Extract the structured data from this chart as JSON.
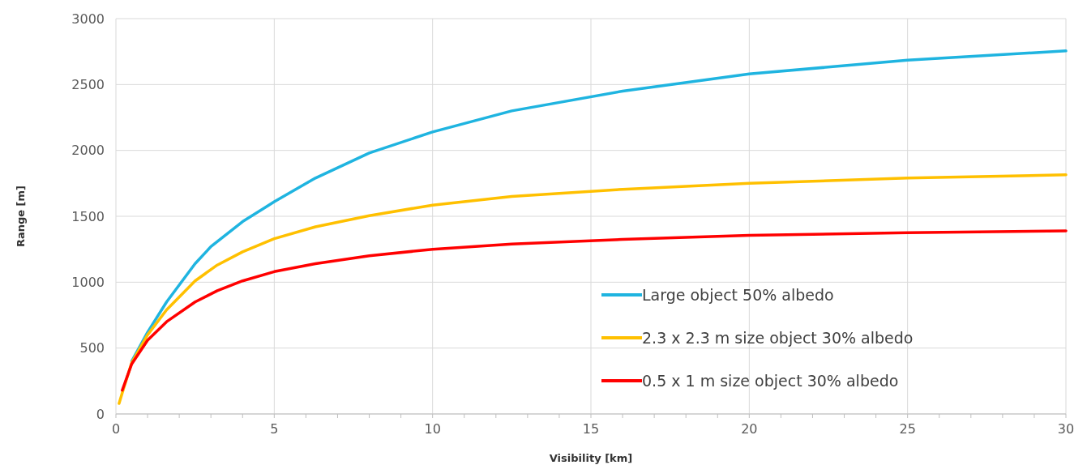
{
  "chart_data": {
    "type": "line",
    "xlabel": "Visibility [km]",
    "ylabel": "Range [m]",
    "xlim": [
      0,
      30
    ],
    "ylim": [
      0,
      3000
    ],
    "xticks": [
      0,
      {
        "value": 1,
        "label": null
      },
      {
        "value": 2,
        "label": null
      },
      {
        "value": 3,
        "label": null
      },
      {
        "value": 4,
        "label": null
      },
      5,
      {
        "value": 6,
        "label": null
      },
      {
        "value": 7,
        "label": null
      },
      {
        "value": 8,
        "label": null
      },
      {
        "value": 9,
        "label": null
      },
      10,
      {
        "value": 11,
        "label": null
      },
      {
        "value": 12,
        "label": null
      },
      {
        "value": 13,
        "label": null
      },
      {
        "value": 14,
        "label": null
      },
      15,
      {
        "value": 16,
        "label": null
      },
      {
        "value": 17,
        "label": null
      },
      {
        "value": 18,
        "label": null
      },
      {
        "value": 19,
        "label": null
      },
      20,
      {
        "value": 21,
        "label": null
      },
      {
        "value": 22,
        "label": null
      },
      {
        "value": 23,
        "label": null
      },
      {
        "value": 24,
        "label": null
      },
      25,
      {
        "value": 26,
        "label": null
      },
      {
        "value": 27,
        "label": null
      },
      {
        "value": 28,
        "label": null
      },
      {
        "value": 29,
        "label": null
      },
      30
    ],
    "yticks": [
      0,
      500,
      1000,
      1500,
      2000,
      2500,
      3000
    ],
    "grid": true,
    "legend": "bottom right",
    "marker": "none",
    "line_style": "solid",
    "series": [
      {
        "name": "Large object 50% albedo",
        "color": "#1fb4e0",
        "x": [
          0.5,
          1,
          1.6,
          2.5,
          3,
          4,
          5,
          6.3,
          8,
          10,
          12.5,
          16,
          20,
          25,
          30
        ],
        "values": [
          400,
          620,
          850,
          1140,
          1270,
          1460,
          1610,
          1790,
          1980,
          2140,
          2300,
          2450,
          2580,
          2685,
          2755
        ]
      },
      {
        "name": "2.3 x 2.3 m size object 30% albedo",
        "color": "#ffc000",
        "x": [
          0.1,
          0.2,
          0.5,
          1,
          1.6,
          2.5,
          3.2,
          4,
          5,
          6.3,
          8,
          10,
          12.5,
          16,
          20,
          25,
          30
        ],
        "values": [
          80,
          160,
          390,
          600,
          790,
          1010,
          1130,
          1230,
          1330,
          1420,
          1505,
          1585,
          1650,
          1705,
          1750,
          1790,
          1815
        ]
      },
      {
        "name": "0.5 x 1 m size object 30% albedo",
        "color": "#ff0000",
        "x": [
          0.2,
          0.5,
          1,
          1.6,
          2.5,
          3.2,
          4,
          5,
          6.3,
          8,
          10,
          12.5,
          16,
          20,
          25,
          30
        ],
        "values": [
          180,
          380,
          560,
          700,
          850,
          935,
          1010,
          1080,
          1140,
          1200,
          1250,
          1290,
          1325,
          1355,
          1375,
          1390
        ]
      }
    ]
  }
}
